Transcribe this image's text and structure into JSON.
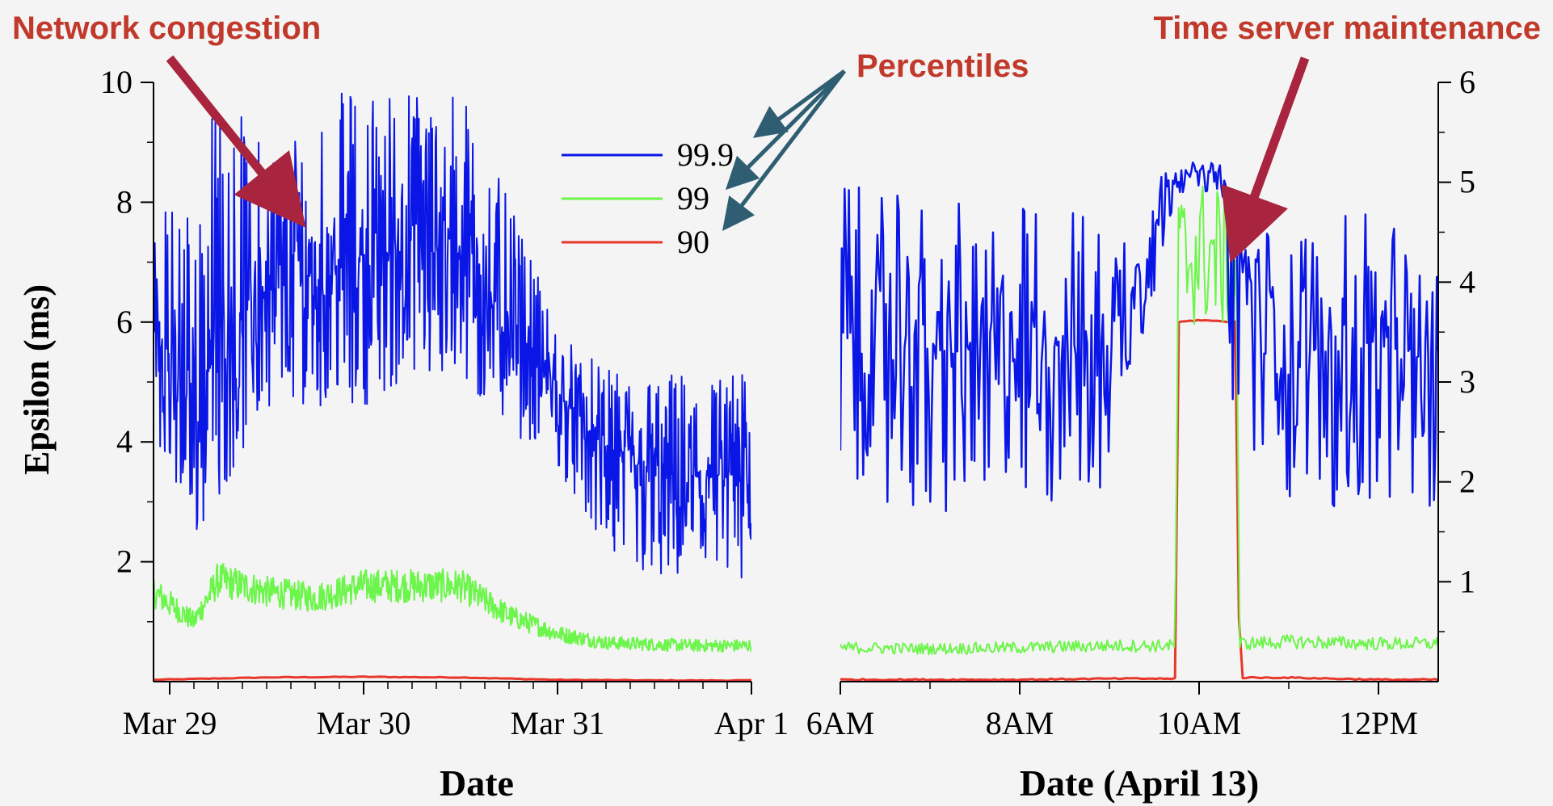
{
  "colors": {
    "p999": "#0a16e6",
    "p99": "#6cf54a",
    "p90": "#e8382b",
    "annotation_red": "#c0392b",
    "arrow_red": "#a8243f",
    "arrow_blue": "#2f5e72",
    "axis": "#000000",
    "background": "#f4f4f4"
  },
  "annotations": {
    "network_congestion": "Network congestion",
    "time_server_maintenance": "Time server maintenance",
    "percentiles": "Percentiles"
  },
  "legend": {
    "items": [
      "99.9",
      "99",
      "90"
    ]
  },
  "chart_data": [
    {
      "type": "line",
      "title": "",
      "xlabel": "Date",
      "ylabel": "Epsilon (ms)",
      "ylim": [
        0,
        10
      ],
      "yticks": [
        "2",
        "4",
        "6",
        "8",
        "10"
      ],
      "xlim": [
        "2016-03-28T22:00",
        "2016-04-01T00:00"
      ],
      "xticks": [
        "Mar 29",
        "Mar 30",
        "Mar 31",
        "Apr 1"
      ],
      "grid": false,
      "series": [
        {
          "name": "99.9",
          "x": [
            "Mar 28 22:00",
            "Mar 29 03:00",
            "Mar 29 06:00",
            "Mar 29 12:00",
            "Mar 29 18:00",
            "Mar 30 00:00",
            "Mar 30 06:00",
            "Mar 30 12:00",
            "Mar 30 18:00",
            "Mar 31 00:00",
            "Mar 31 06:00",
            "Mar 31 12:00",
            "Mar 31 18:00",
            "Apr 1 00:00"
          ],
          "values": [
            6.0,
            4.5,
            5.6,
            6.5,
            6.8,
            7.0,
            7.3,
            7.2,
            6.0,
            4.8,
            3.8,
            3.4,
            3.4,
            3.3
          ],
          "low": [
            4.0,
            2.3,
            3.0,
            4.6,
            4.6,
            4.6,
            5.0,
            4.8,
            4.2,
            3.6,
            2.0,
            1.6,
            1.5,
            1.5
          ],
          "high": [
            7.8,
            8.4,
            10.0,
            9.0,
            9.7,
            10.0,
            10.0,
            10.0,
            8.0,
            5.9,
            5.2,
            5.2,
            5.2,
            5.2
          ]
        },
        {
          "name": "99",
          "x": [
            "Mar 28 22:00",
            "Mar 29 03:00",
            "Mar 29 06:00",
            "Mar 29 12:00",
            "Mar 29 18:00",
            "Mar 30 00:00",
            "Mar 30 06:00",
            "Mar 30 12:00",
            "Mar 30 18:00",
            "Mar 31 00:00",
            "Mar 31 06:00",
            "Mar 31 12:00",
            "Mar 31 18:00",
            "Apr 1 00:00"
          ],
          "values": [
            1.5,
            1.0,
            1.7,
            1.5,
            1.4,
            1.6,
            1.6,
            1.6,
            1.1,
            0.8,
            0.65,
            0.62,
            0.6,
            0.6
          ]
        },
        {
          "name": "90",
          "x": [
            "Mar 28 22:00",
            "Mar 29 12:00",
            "Mar 30 00:00",
            "Mar 30 12:00",
            "Mar 31 00:00",
            "Mar 31 12:00",
            "Apr 1 00:00"
          ],
          "values": [
            0.03,
            0.07,
            0.08,
            0.07,
            0.03,
            0.02,
            0.02
          ]
        }
      ]
    },
    {
      "type": "line",
      "title": "",
      "xlabel": "Date (April 13)",
      "ylabel": "",
      "ylim": [
        0,
        6
      ],
      "yticks": [
        "1",
        "2",
        "3",
        "4",
        "5",
        "6"
      ],
      "xlim": [
        "06:00",
        "12:40"
      ],
      "xticks": [
        "6AM",
        "8AM",
        "10AM",
        "12PM"
      ],
      "grid": false,
      "series": [
        {
          "name": "99.9",
          "x": [
            "06:00",
            "07:00",
            "08:00",
            "09:00",
            "09:45",
            "10:00",
            "10:15",
            "10:25",
            "11:00",
            "12:00",
            "12:40"
          ],
          "values": [
            3.4,
            3.3,
            3.3,
            3.4,
            5.1,
            5.1,
            5.1,
            4.2,
            3.3,
            3.3,
            3.2
          ],
          "low": [
            2.0,
            1.6,
            1.7,
            1.7,
            4.9,
            4.9,
            4.9,
            1.8,
            1.8,
            1.6,
            1.7
          ],
          "high": [
            5.0,
            4.8,
            4.8,
            4.8,
            5.2,
            5.2,
            5.2,
            4.5,
            4.6,
            4.7,
            4.6
          ]
        },
        {
          "name": "99",
          "x": [
            "06:00",
            "07:00",
            "08:00",
            "09:00",
            "09:44",
            "09:46",
            "10:00",
            "10:25",
            "10:27",
            "11:00",
            "12:00",
            "12:40"
          ],
          "values": [
            0.34,
            0.33,
            0.34,
            0.36,
            0.36,
            4.2,
            4.3,
            4.2,
            0.38,
            0.4,
            0.38,
            0.38
          ]
        },
        {
          "name": "90",
          "x": [
            "06:00",
            "07:00",
            "08:00",
            "09:00",
            "09:44",
            "09:46",
            "10:00",
            "10:25",
            "10:27",
            "11:00",
            "12:00",
            "12:40"
          ],
          "values": [
            0.02,
            0.02,
            0.02,
            0.03,
            0.03,
            3.6,
            3.62,
            3.6,
            0.04,
            0.04,
            0.02,
            0.02
          ]
        }
      ]
    }
  ]
}
